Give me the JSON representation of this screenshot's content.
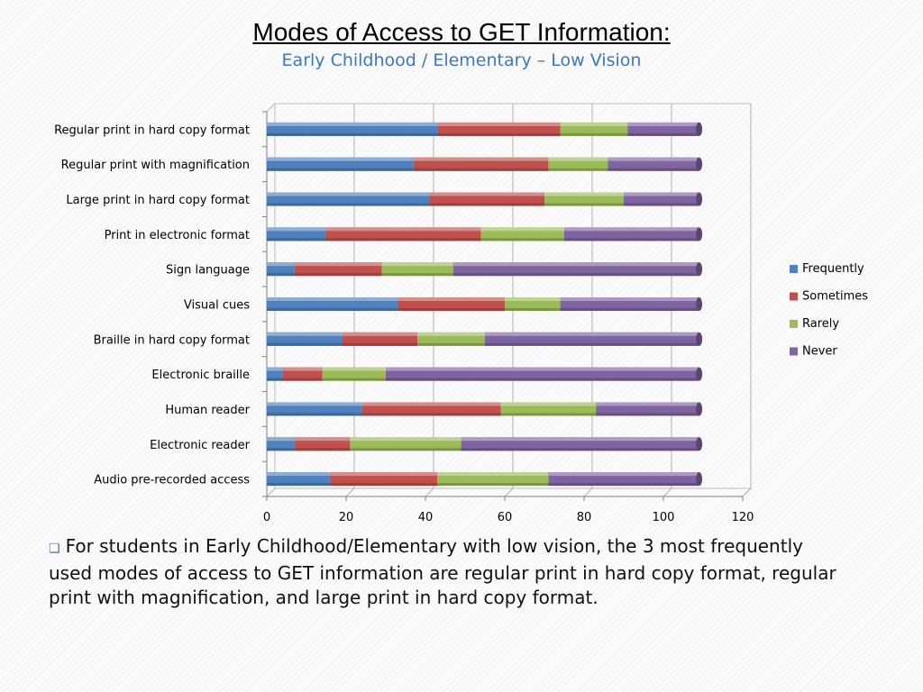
{
  "chart_data": {
    "type": "bar",
    "orientation": "horizontal",
    "stacked": true,
    "title": "Modes of Access to GET Information:",
    "subtitle": "Early Childhood / Elementary – Low Vision",
    "categories": [
      "Regular print in hard copy format",
      "Regular print with magnification",
      "Large print in hard copy format",
      "Print in electronic format",
      "Sign language",
      "Visual cues",
      "Braille in hard copy format",
      "Electronic braille",
      "Human reader",
      "Electronic reader",
      "Audio pre-recorded access"
    ],
    "series": [
      {
        "name": "Frequently",
        "color": "#4f81bd",
        "values": [
          43,
          37,
          41,
          15,
          7,
          33,
          19,
          4,
          24,
          7,
          16
        ]
      },
      {
        "name": "Sometimes",
        "color": "#c0504d",
        "values": [
          31,
          34,
          29,
          39,
          22,
          27,
          19,
          10,
          35,
          14,
          27
        ]
      },
      {
        "name": "Rarely",
        "color": "#9bbb59",
        "values": [
          17,
          15,
          20,
          21,
          18,
          14,
          17,
          16,
          24,
          28,
          28
        ]
      },
      {
        "name": "Never",
        "color": "#8064a2",
        "values": [
          18,
          23,
          19,
          34,
          62,
          35,
          54,
          79,
          26,
          60,
          38
        ]
      }
    ],
    "xlim": [
      0,
      120
    ],
    "xticks": [
      0,
      20,
      40,
      60,
      80,
      100,
      120
    ],
    "grid": true,
    "legend_position": "right"
  },
  "note": {
    "bullet_icon": "square-bullet-icon",
    "text": "For students in Early Childhood/Elementary with low vision, the 3 most frequently used modes of access to GET information are regular print in hard copy format, regular print with magnification, and large print in hard copy format."
  }
}
